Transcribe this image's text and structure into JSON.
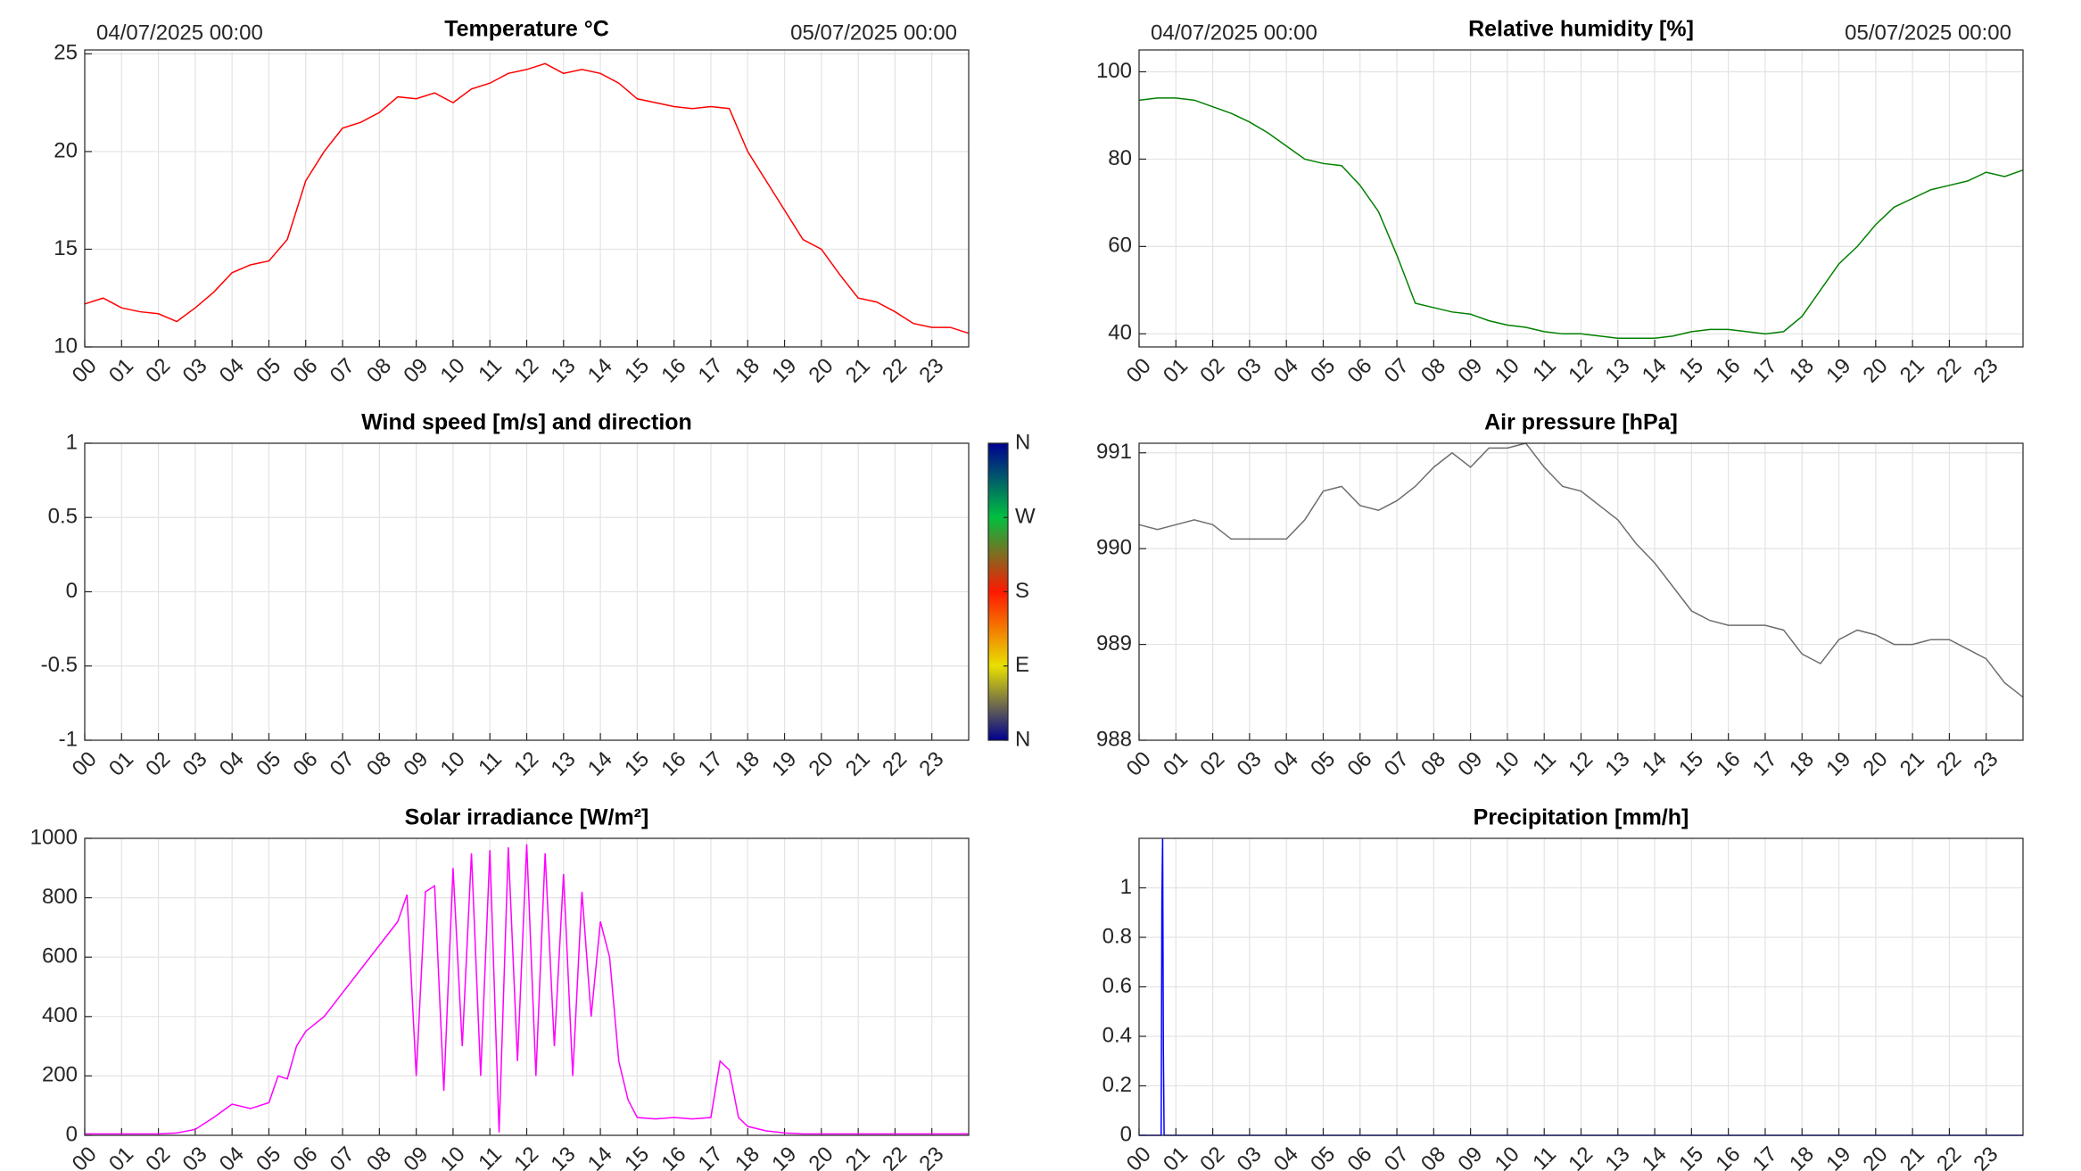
{
  "chart_data": [
    {
      "type": "line",
      "title": "Temperature °C",
      "start_label": "04/07/2025 00:00",
      "end_label": "05/07/2025 00:00",
      "color": "#ff0000",
      "grid": true,
      "xlim": [
        0,
        24
      ],
      "ylim": [
        10,
        25.2
      ],
      "yticks": [
        10,
        15,
        20,
        25
      ],
      "xticks": [
        {
          "value": 0,
          "label": "00"
        },
        {
          "value": 1,
          "label": "01"
        },
        {
          "value": 2,
          "label": "02"
        },
        {
          "value": 3,
          "label": "03"
        },
        {
          "value": 4,
          "label": "04"
        },
        {
          "value": 5,
          "label": "05"
        },
        {
          "value": 6,
          "label": "06"
        },
        {
          "value": 7,
          "label": "07"
        },
        {
          "value": 8,
          "label": "08"
        },
        {
          "value": 9,
          "label": "09"
        },
        {
          "value": 10,
          "label": "10"
        },
        {
          "value": 11,
          "label": "11"
        },
        {
          "value": 12,
          "label": "12"
        },
        {
          "value": 13,
          "label": "13"
        },
        {
          "value": 14,
          "label": "14"
        },
        {
          "value": 15,
          "label": "15"
        },
        {
          "value": 16,
          "label": "16"
        },
        {
          "value": 17,
          "label": "17"
        },
        {
          "value": 18,
          "label": "18"
        },
        {
          "value": 19,
          "label": "19"
        },
        {
          "value": 20,
          "label": "20"
        },
        {
          "value": 21,
          "label": "21"
        },
        {
          "value": 22,
          "label": "22"
        },
        {
          "value": 23,
          "label": "23"
        }
      ],
      "x": [
        0,
        0.5,
        1,
        1.5,
        2,
        2.5,
        3,
        3.5,
        4,
        4.5,
        5,
        5.5,
        6,
        6.5,
        7,
        7.5,
        8,
        8.5,
        9,
        9.5,
        10,
        10.5,
        11,
        11.5,
        12,
        12.5,
        13,
        13.5,
        14,
        14.5,
        15,
        15.5,
        16,
        16.5,
        17,
        17.5,
        18,
        18.5,
        19,
        19.5,
        20,
        20.5,
        21,
        21.5,
        22,
        22.5,
        23,
        23.5,
        24
      ],
      "values": [
        12.2,
        12.5,
        12,
        11.8,
        11.7,
        11.3,
        12,
        12.8,
        13.8,
        14.2,
        14.4,
        15.5,
        18.5,
        20,
        21.2,
        21.5,
        22,
        22.8,
        22.7,
        23,
        22.5,
        23.2,
        23.5,
        24,
        24.2,
        24.5,
        24,
        24.2,
        24,
        23.5,
        22.7,
        22.5,
        22.3,
        22.2,
        22.3,
        22.2,
        20,
        18.5,
        17,
        15.5,
        15,
        13.7,
        12.5,
        12.3,
        11.8,
        11.2,
        11,
        11,
        10.7
      ]
    },
    {
      "type": "line",
      "title": "Relative humidity [%]",
      "start_label": "04/07/2025 00:00",
      "end_label": "05/07/2025 00:00",
      "color": "#008000",
      "grid": true,
      "xlim": [
        0,
        24
      ],
      "ylim": [
        37,
        105
      ],
      "yticks": [
        40,
        60,
        80,
        100
      ],
      "xticks": [
        {
          "value": 0,
          "label": "00"
        },
        {
          "value": 1,
          "label": "01"
        },
        {
          "value": 2,
          "label": "02"
        },
        {
          "value": 3,
          "label": "03"
        },
        {
          "value": 4,
          "label": "04"
        },
        {
          "value": 5,
          "label": "05"
        },
        {
          "value": 6,
          "label": "06"
        },
        {
          "value": 7,
          "label": "07"
        },
        {
          "value": 8,
          "label": "08"
        },
        {
          "value": 9,
          "label": "09"
        },
        {
          "value": 10,
          "label": "10"
        },
        {
          "value": 11,
          "label": "11"
        },
        {
          "value": 12,
          "label": "12"
        },
        {
          "value": 13,
          "label": "13"
        },
        {
          "value": 14,
          "label": "14"
        },
        {
          "value": 15,
          "label": "15"
        },
        {
          "value": 16,
          "label": "16"
        },
        {
          "value": 17,
          "label": "17"
        },
        {
          "value": 18,
          "label": "18"
        },
        {
          "value": 19,
          "label": "19"
        },
        {
          "value": 20,
          "label": "20"
        },
        {
          "value": 21,
          "label": "21"
        },
        {
          "value": 22,
          "label": "22"
        },
        {
          "value": 23,
          "label": "23"
        }
      ],
      "x": [
        0,
        0.5,
        1,
        1.5,
        2,
        2.5,
        3,
        3.5,
        4,
        4.5,
        5,
        5.5,
        6,
        6.5,
        7,
        7.5,
        8,
        8.5,
        9,
        9.5,
        10,
        10.5,
        11,
        11.5,
        12,
        12.5,
        13,
        13.5,
        14,
        14.5,
        15,
        15.5,
        16,
        16.5,
        17,
        17.5,
        18,
        18.5,
        19,
        19.5,
        20,
        20.5,
        21,
        21.5,
        22,
        22.5,
        23,
        23.5,
        24
      ],
      "values": [
        93.5,
        94,
        94,
        93.5,
        92,
        90.5,
        88.5,
        86,
        83,
        80,
        79,
        78.5,
        74,
        68,
        58,
        47,
        46,
        45,
        44.5,
        43,
        42,
        41.5,
        40.5,
        40,
        40,
        39.5,
        39,
        39,
        39,
        39.5,
        40.5,
        41,
        41,
        40.5,
        40,
        40.5,
        44,
        50,
        56,
        60,
        65,
        69,
        71,
        73,
        74,
        75,
        77,
        76,
        77.5
      ]
    },
    {
      "type": "empty",
      "title": "Wind speed [m/s] and direction",
      "grid": true,
      "xlim": [
        0,
        24
      ],
      "ylim": [
        -1,
        1
      ],
      "yticks": [
        -1,
        -0.5,
        0,
        0.5,
        1
      ],
      "xticks": [
        {
          "value": 0,
          "label": "00"
        },
        {
          "value": 1,
          "label": "01"
        },
        {
          "value": 2,
          "label": "02"
        },
        {
          "value": 3,
          "label": "03"
        },
        {
          "value": 4,
          "label": "04"
        },
        {
          "value": 5,
          "label": "05"
        },
        {
          "value": 6,
          "label": "06"
        },
        {
          "value": 7,
          "label": "07"
        },
        {
          "value": 8,
          "label": "08"
        },
        {
          "value": 9,
          "label": "09"
        },
        {
          "value": 10,
          "label": "10"
        },
        {
          "value": 11,
          "label": "11"
        },
        {
          "value": 12,
          "label": "12"
        },
        {
          "value": 13,
          "label": "13"
        },
        {
          "value": 14,
          "label": "14"
        },
        {
          "value": 15,
          "label": "15"
        },
        {
          "value": 16,
          "label": "16"
        },
        {
          "value": 17,
          "label": "17"
        },
        {
          "value": 18,
          "label": "18"
        },
        {
          "value": 19,
          "label": "19"
        },
        {
          "value": 20,
          "label": "20"
        },
        {
          "value": 21,
          "label": "21"
        },
        {
          "value": 22,
          "label": "22"
        },
        {
          "value": 23,
          "label": "23"
        }
      ],
      "x": [],
      "values": [],
      "colorbar": {
        "lim": [
          0,
          360
        ],
        "colors": [
          "#000090",
          "#e8e000",
          "#ff1800",
          "#00c040",
          "#000090"
        ],
        "ticks": [
          {
            "value": 0,
            "label": "N"
          },
          {
            "value": 90,
            "label": "E"
          },
          {
            "value": 180,
            "label": "S"
          },
          {
            "value": 270,
            "label": "W"
          },
          {
            "value": 360,
            "label": "N"
          }
        ]
      }
    },
    {
      "type": "line",
      "title": "Air pressure [hPa]",
      "color": "#6e6e6e",
      "grid": true,
      "xlim": [
        0,
        24
      ],
      "ylim": [
        988,
        991.1
      ],
      "yticks": [
        988,
        989,
        990,
        991
      ],
      "xticks": [
        {
          "value": 0,
          "label": "00"
        },
        {
          "value": 1,
          "label": "01"
        },
        {
          "value": 2,
          "label": "02"
        },
        {
          "value": 3,
          "label": "03"
        },
        {
          "value": 4,
          "label": "04"
        },
        {
          "value": 5,
          "label": "05"
        },
        {
          "value": 6,
          "label": "06"
        },
        {
          "value": 7,
          "label": "07"
        },
        {
          "value": 8,
          "label": "08"
        },
        {
          "value": 9,
          "label": "09"
        },
        {
          "value": 10,
          "label": "10"
        },
        {
          "value": 11,
          "label": "11"
        },
        {
          "value": 12,
          "label": "12"
        },
        {
          "value": 13,
          "label": "13"
        },
        {
          "value": 14,
          "label": "14"
        },
        {
          "value": 15,
          "label": "15"
        },
        {
          "value": 16,
          "label": "16"
        },
        {
          "value": 17,
          "label": "17"
        },
        {
          "value": 18,
          "label": "18"
        },
        {
          "value": 19,
          "label": "19"
        },
        {
          "value": 20,
          "label": "20"
        },
        {
          "value": 21,
          "label": "21"
        },
        {
          "value": 22,
          "label": "22"
        },
        {
          "value": 23,
          "label": "23"
        }
      ],
      "x": [
        0,
        0.5,
        1,
        1.5,
        2,
        2.5,
        3,
        3.5,
        4,
        4.5,
        5,
        5.5,
        6,
        6.5,
        7,
        7.5,
        8,
        8.5,
        9,
        9.5,
        10,
        10.5,
        11,
        11.5,
        12,
        12.5,
        13,
        13.5,
        14,
        14.5,
        15,
        15.5,
        16,
        16.5,
        17,
        17.5,
        18,
        18.5,
        19,
        19.5,
        20,
        20.5,
        21,
        21.5,
        22,
        22.5,
        23,
        23.5,
        24
      ],
      "values": [
        990.25,
        990.2,
        990.25,
        990.3,
        990.25,
        990.1,
        990.1,
        990.1,
        990.1,
        990.3,
        990.6,
        990.65,
        990.45,
        990.4,
        990.5,
        990.65,
        990.85,
        991,
        990.85,
        991.05,
        991.05,
        991.1,
        990.85,
        990.65,
        990.6,
        990.45,
        990.3,
        990.05,
        989.85,
        989.6,
        989.35,
        989.25,
        989.2,
        989.2,
        989.2,
        989.15,
        988.9,
        988.8,
        989.05,
        989.15,
        989.1,
        989,
        989,
        989.05,
        989.05,
        988.95,
        988.85,
        988.6,
        988.45
      ]
    },
    {
      "type": "line",
      "title": "Solar irradiance [W/m²]",
      "color": "#ff00ff",
      "grid": true,
      "xlim": [
        0,
        24
      ],
      "ylim": [
        0,
        1000
      ],
      "yticks": [
        0,
        200,
        400,
        600,
        800,
        1000
      ],
      "xticks": [
        {
          "value": 0,
          "label": "00"
        },
        {
          "value": 1,
          "label": "01"
        },
        {
          "value": 2,
          "label": "02"
        },
        {
          "value": 3,
          "label": "03"
        },
        {
          "value": 4,
          "label": "04"
        },
        {
          "value": 5,
          "label": "05"
        },
        {
          "value": 6,
          "label": "06"
        },
        {
          "value": 7,
          "label": "07"
        },
        {
          "value": 8,
          "label": "08"
        },
        {
          "value": 9,
          "label": "09"
        },
        {
          "value": 10,
          "label": "10"
        },
        {
          "value": 11,
          "label": "11"
        },
        {
          "value": 12,
          "label": "12"
        },
        {
          "value": 13,
          "label": "13"
        },
        {
          "value": 14,
          "label": "14"
        },
        {
          "value": 15,
          "label": "15"
        },
        {
          "value": 16,
          "label": "16"
        },
        {
          "value": 17,
          "label": "17"
        },
        {
          "value": 18,
          "label": "18"
        },
        {
          "value": 19,
          "label": "19"
        },
        {
          "value": 20,
          "label": "20"
        },
        {
          "value": 21,
          "label": "21"
        },
        {
          "value": 22,
          "label": "22"
        },
        {
          "value": 23,
          "label": "23"
        }
      ],
      "x": [
        0,
        0.5,
        1,
        1.5,
        2,
        2.5,
        3,
        3.5,
        4,
        4.5,
        5,
        5.25,
        5.5,
        5.75,
        6,
        6.5,
        7,
        7.5,
        8,
        8.5,
        8.75,
        9,
        9.25,
        9.5,
        9.75,
        10,
        10.25,
        10.5,
        10.75,
        11,
        11.25,
        11.5,
        11.75,
        12,
        12.25,
        12.5,
        12.75,
        13,
        13.25,
        13.5,
        13.75,
        14,
        14.25,
        14.5,
        14.75,
        15,
        15.5,
        16,
        16.5,
        17,
        17.25,
        17.5,
        17.75,
        18,
        18.5,
        19,
        19.5,
        20,
        21,
        22,
        23,
        24
      ],
      "values": [
        5,
        5,
        5,
        5,
        5,
        8,
        20,
        60,
        105,
        90,
        110,
        200,
        190,
        300,
        350,
        400,
        480,
        560,
        640,
        720,
        810,
        200,
        820,
        840,
        150,
        900,
        300,
        950,
        200,
        960,
        10,
        970,
        250,
        980,
        200,
        950,
        300,
        880,
        200,
        820,
        400,
        720,
        600,
        250,
        120,
        60,
        55,
        60,
        55,
        60,
        250,
        220,
        60,
        30,
        15,
        8,
        5,
        5,
        5,
        5,
        5,
        5
      ]
    },
    {
      "type": "line",
      "title": "Precipitation [mm/h]",
      "color": "#0000ff",
      "grid": true,
      "xlim": [
        0,
        24
      ],
      "ylim": [
        0,
        1.2
      ],
      "yticks": [
        0,
        0.2,
        0.4,
        0.6,
        0.8,
        1
      ],
      "xticks": [
        {
          "value": 0,
          "label": "00"
        },
        {
          "value": 1,
          "label": "01"
        },
        {
          "value": 2,
          "label": "02"
        },
        {
          "value": 3,
          "label": "03"
        },
        {
          "value": 4,
          "label": "04"
        },
        {
          "value": 5,
          "label": "05"
        },
        {
          "value": 6,
          "label": "06"
        },
        {
          "value": 7,
          "label": "07"
        },
        {
          "value": 8,
          "label": "08"
        },
        {
          "value": 9,
          "label": "09"
        },
        {
          "value": 10,
          "label": "10"
        },
        {
          "value": 11,
          "label": "11"
        },
        {
          "value": 12,
          "label": "12"
        },
        {
          "value": 13,
          "label": "13"
        },
        {
          "value": 14,
          "label": "14"
        },
        {
          "value": 15,
          "label": "15"
        },
        {
          "value": 16,
          "label": "16"
        },
        {
          "value": 17,
          "label": "17"
        },
        {
          "value": 18,
          "label": "18"
        },
        {
          "value": 19,
          "label": "19"
        },
        {
          "value": 20,
          "label": "20"
        },
        {
          "value": 21,
          "label": "21"
        },
        {
          "value": 22,
          "label": "22"
        },
        {
          "value": 23,
          "label": "23"
        }
      ],
      "x": [
        0,
        0.6,
        0.62,
        0.64,
        0.66,
        0.68,
        0.7,
        24
      ],
      "values": [
        0,
        0,
        0.95,
        1.2,
        0.35,
        0,
        0,
        0
      ]
    }
  ]
}
